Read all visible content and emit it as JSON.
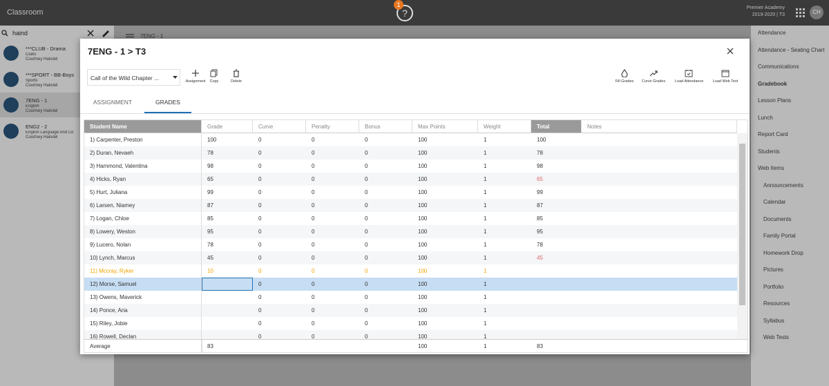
{
  "header": {
    "app_name": "Classroom",
    "badge": "1",
    "school": "Premier Academy",
    "term": "2019-2020 | T3",
    "avatar": "CH"
  },
  "left_sidebar": {
    "search": "haind",
    "breadcrumb": "7ENG - 1",
    "classes": [
      {
        "name": "***CLUB - Drama",
        "subject": "Clubs",
        "teacher": "Courtney Haindel"
      },
      {
        "name": "***SPORT - BB-Boys",
        "subject": "Sports",
        "teacher": "Courtney Haindel"
      },
      {
        "name": "7ENG - 1",
        "subject": "English",
        "teacher": "Courtney Haindel"
      },
      {
        "name": "ENG2 - 2",
        "subject": "English Language And Co",
        "teacher": "Courtney Haindel"
      }
    ],
    "selected_class": 2
  },
  "right_menu": {
    "items": [
      "Attendance",
      "Attendance - Seating Chart",
      "Communications",
      "Gradebook",
      "Lesson Plans",
      "Lunch",
      "Report Card",
      "Students",
      "Web Items"
    ],
    "active_item": 3,
    "web_items": [
      "Announcements",
      "Calendar",
      "Documents",
      "Family Portal",
      "Homework Drop",
      "Pictures",
      "Portfolio",
      "Resources",
      "Syllabus",
      "Web Tests"
    ]
  },
  "modal": {
    "title": "7ENG - 1 > T3",
    "assignment": "Call of the Wild Chapter ...",
    "tools_left": [
      "Assignment",
      "Copy",
      "Delete"
    ],
    "tools_right": [
      "Fill Grades",
      "Curve Grades",
      "Load Attendance",
      "Load Web Test"
    ],
    "tabs": [
      "ASSIGNMENT",
      "GRADES"
    ],
    "active_tab": 1
  },
  "table": {
    "columns": [
      "Student Name",
      "Grade",
      "Curve",
      "Penalty",
      "Bonus",
      "Max Points",
      "Weight",
      "Total",
      "Notes"
    ],
    "rows": [
      [
        "1) Carpenter, Preston",
        100,
        0,
        0,
        0,
        100,
        1,
        100
      ],
      [
        "2) Duran, Nevaeh",
        78,
        0,
        0,
        0,
        100,
        1,
        78
      ],
      [
        "3) Hammond, Valentina",
        98,
        0,
        0,
        0,
        100,
        1,
        98
      ],
      [
        "4) Hicks, Ryan",
        65,
        0,
        0,
        0,
        100,
        1,
        65
      ],
      [
        "5) Hurt, Juliana",
        99,
        0,
        0,
        0,
        100,
        1,
        99
      ],
      [
        "6) Larsen, Niamey",
        87,
        0,
        0,
        0,
        100,
        1,
        87
      ],
      [
        "7) Logan, Chloe",
        85,
        0,
        0,
        0,
        100,
        1,
        85
      ],
      [
        "8) Lowery, Weston",
        95,
        0,
        0,
        0,
        100,
        1,
        95
      ],
      [
        "9) Lucero, Nolan",
        78,
        0,
        0,
        0,
        100,
        1,
        78
      ],
      [
        "10) Lynch, Marcus",
        45,
        0,
        0,
        0,
        100,
        1,
        45
      ],
      [
        "11) Mccray, Ryker",
        10,
        0,
        0,
        0,
        100,
        1,
        null
      ],
      [
        "12) Morse, Samuel",
        null,
        0,
        0,
        0,
        100,
        1,
        null
      ],
      [
        "13) Owens, Maverick",
        null,
        0,
        0,
        0,
        100,
        1,
        null
      ],
      [
        "14) Ponce, Aria",
        null,
        0,
        0,
        0,
        100,
        1,
        null
      ],
      [
        "15) Riley, Jobie",
        null,
        0,
        0,
        0,
        100,
        1,
        null
      ],
      [
        "16) Rowell, Declan",
        null,
        0,
        0,
        0,
        100,
        1,
        null
      ]
    ],
    "warning_row": 10,
    "selected_row": 11,
    "low_total_color": "#e06666",
    "warning_color": "#f0a500",
    "footer": [
      "Average",
      83,
      null,
      null,
      null,
      100,
      1,
      83
    ]
  }
}
